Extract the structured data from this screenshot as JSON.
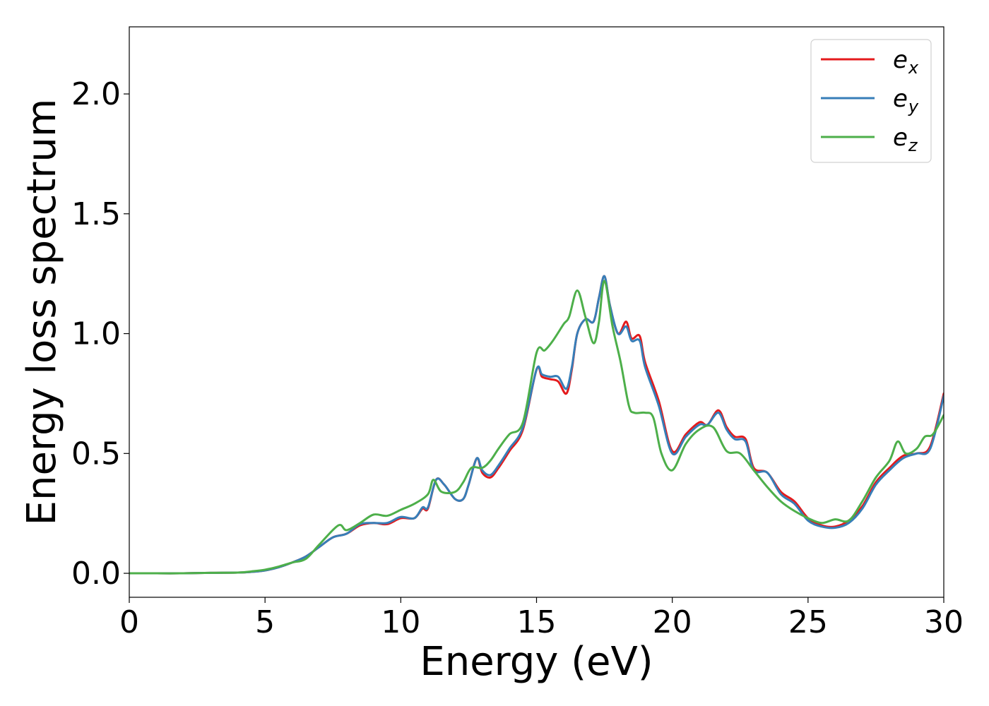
{
  "chart_data": {
    "type": "line",
    "title": "",
    "xlabel": "Energy (eV)",
    "ylabel": "Energy loss spectrum",
    "xlim": [
      0,
      30
    ],
    "ylim": [
      -0.1,
      2.28
    ],
    "xticks": [
      0,
      5,
      10,
      15,
      20,
      25,
      30
    ],
    "xtick_labels": [
      "0",
      "5",
      "10",
      "15",
      "20",
      "25",
      "30"
    ],
    "yticks": [
      0.0,
      0.5,
      1.0,
      1.5,
      2.0
    ],
    "ytick_labels": [
      "0.0",
      "0.5",
      "1.0",
      "1.5",
      "2.0"
    ],
    "grid": false,
    "legend_position": "top-right",
    "series": [
      {
        "name": "e_x",
        "legend_base": "e",
        "legend_sub": "x",
        "color": "#e41a1c",
        "x": [
          0,
          1,
          2,
          3,
          4,
          4.5,
          5,
          5.5,
          6,
          6.5,
          7,
          7.5,
          8,
          8.5,
          9,
          9.5,
          10,
          10.5,
          10.8,
          11,
          11.3,
          11.6,
          12,
          12.3,
          12.5,
          12.8,
          13,
          13.3,
          13.6,
          14,
          14.5,
          15,
          15.2,
          15.5,
          15.8,
          16.1,
          16.3,
          16.5,
          16.8,
          17.1,
          17.3,
          17.5,
          17.7,
          18,
          18.3,
          18.5,
          18.8,
          19,
          19.5,
          20,
          20.5,
          21,
          21.3,
          21.7,
          22,
          22.3,
          22.7,
          23,
          23.5,
          24,
          24.5,
          25,
          25.5,
          26,
          26.5,
          27,
          27.5,
          28,
          28.5,
          29,
          29.5,
          30
        ],
        "y": [
          0.0,
          0.0,
          0.0,
          0.002,
          0.003,
          0.006,
          0.012,
          0.025,
          0.045,
          0.07,
          0.11,
          0.15,
          0.165,
          0.2,
          0.21,
          0.205,
          0.23,
          0.23,
          0.27,
          0.27,
          0.39,
          0.37,
          0.31,
          0.31,
          0.37,
          0.48,
          0.42,
          0.4,
          0.44,
          0.51,
          0.6,
          0.85,
          0.82,
          0.81,
          0.8,
          0.75,
          0.85,
          1.0,
          1.06,
          1.05,
          1.15,
          1.24,
          1.12,
          1.0,
          1.05,
          0.98,
          0.99,
          0.88,
          0.72,
          0.51,
          0.58,
          0.63,
          0.62,
          0.68,
          0.61,
          0.57,
          0.56,
          0.44,
          0.42,
          0.34,
          0.3,
          0.23,
          0.2,
          0.195,
          0.22,
          0.28,
          0.38,
          0.44,
          0.49,
          0.5,
          0.53,
          0.75
        ]
      },
      {
        "name": "e_y",
        "legend_base": "e",
        "legend_sub": "y",
        "color": "#377eb8",
        "x": [
          0,
          1,
          2,
          3,
          4,
          4.5,
          5,
          5.5,
          6,
          6.5,
          7,
          7.5,
          8,
          8.5,
          9,
          9.5,
          10,
          10.5,
          10.8,
          11,
          11.3,
          11.6,
          12,
          12.3,
          12.5,
          12.8,
          13,
          13.3,
          13.6,
          14,
          14.5,
          15,
          15.2,
          15.5,
          15.8,
          16.1,
          16.3,
          16.5,
          16.8,
          17.1,
          17.3,
          17.5,
          17.7,
          18,
          18.3,
          18.5,
          18.8,
          19,
          19.5,
          20,
          20.5,
          21,
          21.3,
          21.7,
          22,
          22.3,
          22.7,
          23,
          23.5,
          24,
          24.5,
          25,
          25.5,
          26,
          26.5,
          27,
          27.5,
          28,
          28.5,
          29,
          29.5,
          30
        ],
        "y": [
          0.0,
          0.0,
          0.0,
          0.002,
          0.003,
          0.006,
          0.012,
          0.025,
          0.045,
          0.07,
          0.11,
          0.15,
          0.165,
          0.205,
          0.21,
          0.21,
          0.235,
          0.23,
          0.275,
          0.275,
          0.39,
          0.37,
          0.31,
          0.31,
          0.37,
          0.48,
          0.43,
          0.41,
          0.45,
          0.52,
          0.61,
          0.85,
          0.83,
          0.82,
          0.82,
          0.77,
          0.86,
          1.0,
          1.06,
          1.05,
          1.15,
          1.24,
          1.12,
          1.0,
          1.03,
          0.97,
          0.97,
          0.86,
          0.7,
          0.5,
          0.57,
          0.62,
          0.62,
          0.67,
          0.6,
          0.56,
          0.55,
          0.43,
          0.42,
          0.33,
          0.29,
          0.22,
          0.195,
          0.19,
          0.21,
          0.27,
          0.37,
          0.43,
          0.48,
          0.5,
          0.52,
          0.74
        ]
      },
      {
        "name": "e_z",
        "legend_base": "e",
        "legend_sub": "z",
        "color": "#4daf4a",
        "x": [
          0,
          1,
          2,
          3,
          4,
          4.5,
          5,
          5.5,
          6,
          6.5,
          7,
          7.7,
          8,
          8.5,
          9,
          9.5,
          10,
          10.5,
          11,
          11.2,
          11.5,
          12,
          12.3,
          12.6,
          13,
          13.3,
          13.6,
          14,
          14.5,
          15,
          15.3,
          15.6,
          16,
          16.2,
          16.5,
          16.8,
          17.1,
          17.3,
          17.5,
          17.8,
          18.1,
          18.4,
          18.6,
          19,
          19.3,
          19.6,
          20,
          20.5,
          21,
          21.5,
          22,
          22.5,
          23,
          23.5,
          24,
          24.5,
          25,
          25.5,
          26,
          26.5,
          27,
          27.5,
          28,
          28.3,
          28.6,
          29,
          29.3,
          29.6,
          30
        ],
        "y": [
          0.0,
          0.0,
          0.0,
          0.002,
          0.003,
          0.008,
          0.015,
          0.028,
          0.045,
          0.06,
          0.12,
          0.2,
          0.18,
          0.21,
          0.245,
          0.24,
          0.265,
          0.29,
          0.33,
          0.39,
          0.34,
          0.34,
          0.38,
          0.44,
          0.44,
          0.47,
          0.52,
          0.58,
          0.63,
          0.92,
          0.93,
          0.97,
          1.04,
          1.07,
          1.18,
          1.07,
          0.96,
          1.05,
          1.22,
          1.03,
          0.88,
          0.7,
          0.67,
          0.67,
          0.65,
          0.5,
          0.43,
          0.54,
          0.6,
          0.61,
          0.51,
          0.5,
          0.43,
          0.36,
          0.3,
          0.26,
          0.23,
          0.21,
          0.225,
          0.22,
          0.3,
          0.4,
          0.47,
          0.55,
          0.5,
          0.52,
          0.57,
          0.58,
          0.66
        ]
      }
    ]
  }
}
